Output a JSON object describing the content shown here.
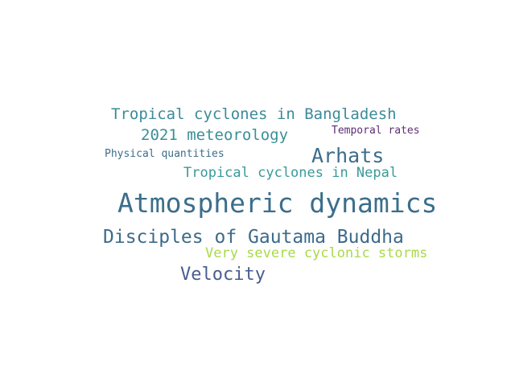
{
  "words": [
    {
      "text": "Tropical cyclones in Bangladesh",
      "color": "#3b8b99"
    },
    {
      "text": "2021 meteorology",
      "color": "#3a8f98"
    },
    {
      "text": "Temporal rates",
      "color": "#5b2f73"
    },
    {
      "text": "Physical quantities",
      "color": "#3d6e8a"
    },
    {
      "text": "Arhats",
      "color": "#3d6e8a"
    },
    {
      "text": "Tropical cyclones in Nepal",
      "color": "#3a9a9a"
    },
    {
      "text": "Atmospheric dynamics",
      "color": "#3b6e8c"
    },
    {
      "text": "Disciples of Gautama Buddha",
      "color": "#3d6b8a"
    },
    {
      "text": "Very severe cyclonic storms",
      "color": "#a8d94a"
    },
    {
      "text": "Velocity",
      "color": "#4a5d8f"
    }
  ]
}
